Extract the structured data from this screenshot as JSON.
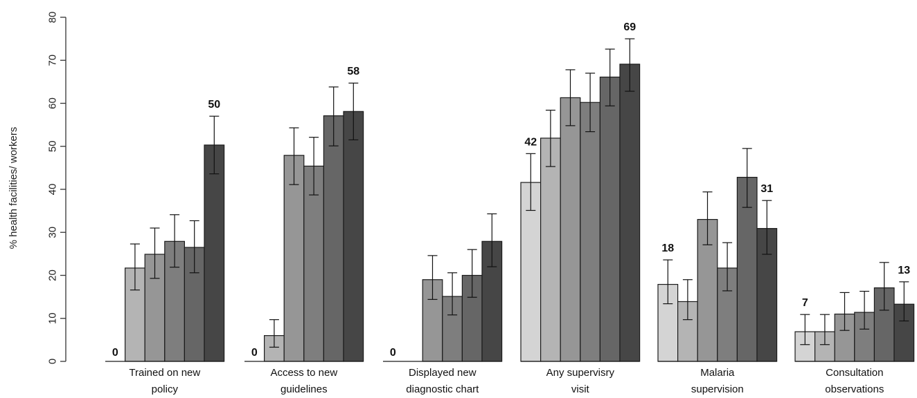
{
  "chart_data": {
    "type": "bar",
    "title": "",
    "xlabel": "",
    "ylabel": "% health facilities/ workers",
    "ylim": [
      0,
      80
    ],
    "yticks": [
      0,
      10,
      20,
      30,
      40,
      50,
      60,
      70,
      80
    ],
    "grid": false,
    "legend": "none",
    "bar_colors": [
      "#d4d4d4",
      "#b4b4b4",
      "#969696",
      "#7e7e7e",
      "#666666",
      "#464646"
    ],
    "groups": [
      {
        "label_lines": [
          "Trained on new",
          "policy"
        ],
        "values": [
          0,
          21.7,
          24.9,
          27.9,
          26.5,
          50.3
        ],
        "error_low": [
          0,
          16.6,
          19.3,
          21.9,
          20.6,
          43.6
        ],
        "error_high": [
          0,
          27.3,
          31.0,
          34.1,
          32.7,
          57.0
        ],
        "annotations": [
          {
            "bar": 0,
            "text": "0"
          },
          {
            "bar": 5,
            "text": "50"
          }
        ]
      },
      {
        "label_lines": [
          "Access to new",
          "guidelines"
        ],
        "values": [
          0,
          6.0,
          47.9,
          45.4,
          57.1,
          58.1
        ],
        "error_low": [
          0,
          3.3,
          41.1,
          38.7,
          50.1,
          51.5
        ],
        "error_high": [
          0,
          9.7,
          54.3,
          52.1,
          63.8,
          64.7
        ],
        "annotations": [
          {
            "bar": 0,
            "text": "0"
          },
          {
            "bar": 5,
            "text": "58"
          }
        ]
      },
      {
        "label_lines": [
          "Displayed new",
          "diagnostic chart"
        ],
        "values": [
          0,
          0,
          19.0,
          15.1,
          20.0,
          27.9
        ],
        "error_low": [
          0,
          0,
          14.4,
          10.8,
          14.9,
          22.0
        ],
        "error_high": [
          0,
          0,
          24.6,
          20.6,
          26.0,
          34.3
        ],
        "annotations": [
          {
            "bar": 0,
            "text": "0"
          }
        ]
      },
      {
        "label_lines": [
          "Any supervisry",
          "visit"
        ],
        "values": [
          41.6,
          51.9,
          61.3,
          60.2,
          66.1,
          69.1
        ],
        "error_low": [
          35.1,
          45.3,
          54.8,
          53.4,
          59.4,
          62.8
        ],
        "error_high": [
          48.3,
          58.4,
          67.8,
          67.0,
          72.6,
          75.0
        ],
        "annotations": [
          {
            "bar": 0,
            "text": "42"
          },
          {
            "bar": 5,
            "text": "69"
          }
        ]
      },
      {
        "label_lines": [
          "Malaria",
          "supervision"
        ],
        "values": [
          17.9,
          13.9,
          33.0,
          21.7,
          42.8,
          30.9
        ],
        "error_low": [
          13.4,
          9.7,
          27.1,
          16.4,
          35.8,
          24.9
        ],
        "error_high": [
          23.6,
          19.0,
          39.4,
          27.6,
          49.5,
          37.4
        ],
        "annotations": [
          {
            "bar": 0,
            "text": "18"
          },
          {
            "bar": 5,
            "text": "31"
          }
        ]
      },
      {
        "label_lines": [
          "Consultation",
          "observations"
        ],
        "values": [
          6.9,
          6.9,
          11.0,
          11.4,
          17.1,
          13.3
        ],
        "error_low": [
          3.9,
          3.9,
          7.2,
          7.5,
          11.9,
          9.4
        ],
        "error_high": [
          10.9,
          10.9,
          16.0,
          16.3,
          23.0,
          18.5
        ],
        "annotations": [
          {
            "bar": 0,
            "text": "7"
          },
          {
            "bar": 5,
            "text": "13"
          }
        ]
      }
    ]
  }
}
